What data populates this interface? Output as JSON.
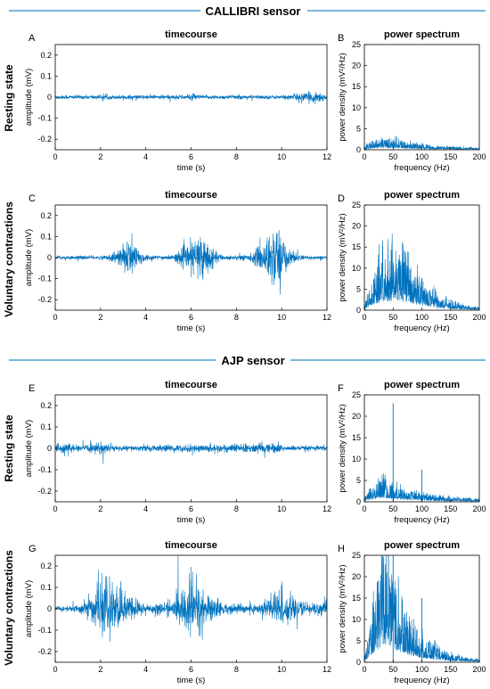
{
  "chart_data": {
    "type": "line",
    "sections": [
      {
        "title": "CALLIBRI sensor"
      },
      {
        "title": "AJP sensor"
      }
    ],
    "rows": [
      {
        "label": "Resting state"
      },
      {
        "label": "Voluntary contractions"
      },
      {
        "label": "Resting state"
      },
      {
        "label": "Voluntary contractions"
      }
    ],
    "panels": [
      {
        "letter": "A",
        "title": "timecourse",
        "kind": "time",
        "xlabel": "time (s)",
        "ylabel": "amplitude (mV)",
        "xlim": [
          0,
          12
        ],
        "ylim": [
          -0.25,
          0.25
        ],
        "xticks": [
          "0",
          "2",
          "4",
          "6",
          "8",
          "10",
          "12"
        ],
        "yticks": [
          "0.2",
          "0.1",
          "0",
          "-0.1",
          "-0.2"
        ],
        "envelope": [
          [
            0,
            0.012
          ],
          [
            5.8,
            0.013
          ],
          [
            6,
            0.022
          ],
          [
            6.5,
            0.012
          ],
          [
            10,
            0.012
          ],
          [
            11.3,
            0.03
          ],
          [
            11.6,
            0.04
          ],
          [
            12,
            0.012
          ]
        ]
      },
      {
        "letter": "B",
        "title": "power spectrum",
        "kind": "psd",
        "xlabel": "frequency (Hz)",
        "ylabel": "power density (mV²/Hz)",
        "xlim": [
          0,
          200
        ],
        "ylim": [
          0,
          25
        ],
        "xticks": [
          "0",
          "50",
          "100",
          "150",
          "200"
        ],
        "yticks": [
          "0",
          "5",
          "10",
          "15",
          "20",
          "25"
        ],
        "envelope": [
          [
            0,
            0.4
          ],
          [
            10,
            1.2
          ],
          [
            30,
            1.9
          ],
          [
            50,
            1.7
          ],
          [
            80,
            1.1
          ],
          [
            120,
            0.6
          ],
          [
            200,
            0.3
          ]
        ]
      },
      {
        "letter": "C",
        "title": "timecourse",
        "kind": "time",
        "xlabel": "time (s)",
        "ylabel": "amplitude (mV)",
        "xlim": [
          0,
          12
        ],
        "ylim": [
          -0.25,
          0.25
        ],
        "xticks": [
          "0",
          "2",
          "4",
          "6",
          "8",
          "10",
          "12"
        ],
        "yticks": [
          "0.2",
          "0.1",
          "0",
          "-0.1",
          "-0.2"
        ],
        "envelope": [
          [
            0,
            0.01
          ],
          [
            2.3,
            0.012
          ],
          [
            3.0,
            0.07
          ],
          [
            3.3,
            0.14
          ],
          [
            3.7,
            0.05
          ],
          [
            4.2,
            0.012
          ],
          [
            5.2,
            0.015
          ],
          [
            6.0,
            0.09
          ],
          [
            6.5,
            0.15
          ],
          [
            7.0,
            0.04
          ],
          [
            7.5,
            0.012
          ],
          [
            8.6,
            0.02
          ],
          [
            9.4,
            0.12
          ],
          [
            9.7,
            0.22
          ],
          [
            10.3,
            0.05
          ],
          [
            11,
            0.01
          ],
          [
            12,
            0.01
          ]
        ]
      },
      {
        "letter": "D",
        "title": "power spectrum",
        "kind": "psd",
        "xlabel": "frequency (Hz)",
        "ylabel": "power density (mV²/Hz)",
        "xlim": [
          0,
          200
        ],
        "ylim": [
          0,
          25
        ],
        "xticks": [
          "0",
          "50",
          "100",
          "150",
          "200"
        ],
        "yticks": [
          "0",
          "5",
          "10",
          "15",
          "20",
          "25"
        ],
        "envelope": [
          [
            0,
            0.5
          ],
          [
            10,
            4
          ],
          [
            30,
            8
          ],
          [
            50,
            9
          ],
          [
            70,
            8
          ],
          [
            100,
            4.5
          ],
          [
            130,
            2
          ],
          [
            170,
            0.8
          ],
          [
            200,
            0.4
          ]
        ]
      },
      {
        "letter": "E",
        "title": "timecourse",
        "kind": "time",
        "xlabel": "time (s)",
        "ylabel": "amplitude (mV)",
        "xlim": [
          0,
          12
        ],
        "ylim": [
          -0.25,
          0.25
        ],
        "xticks": [
          "0",
          "2",
          "4",
          "6",
          "8",
          "10",
          "12"
        ],
        "yticks": [
          "0.2",
          "0.1",
          "0",
          "-0.1",
          "-0.2"
        ],
        "envelope": [
          [
            0,
            0.02
          ],
          [
            0.4,
            0.035
          ],
          [
            1,
            0.015
          ],
          [
            2.2,
            0.035
          ],
          [
            2.7,
            0.015
          ],
          [
            6,
            0.022
          ],
          [
            9.8,
            0.03
          ],
          [
            10.2,
            0.015
          ],
          [
            12,
            0.015
          ]
        ]
      },
      {
        "letter": "F",
        "title": "power spectrum",
        "kind": "psd",
        "xlabel": "frequency (Hz)",
        "ylabel": "power density (mV²/Hz)",
        "xlim": [
          0,
          200
        ],
        "ylim": [
          0,
          25
        ],
        "xticks": [
          "0",
          "50",
          "100",
          "150",
          "200"
        ],
        "yticks": [
          "0",
          "5",
          "10",
          "15",
          "20",
          "25"
        ],
        "envelope": [
          [
            0,
            0.5
          ],
          [
            10,
            2
          ],
          [
            30,
            3.8
          ],
          [
            45,
            2.6
          ],
          [
            70,
            1.8
          ],
          [
            120,
            0.9
          ],
          [
            200,
            0.4
          ]
        ],
        "spikes": [
          [
            50,
            23
          ],
          [
            100,
            7.5
          ]
        ]
      },
      {
        "letter": "G",
        "title": "timecourse",
        "kind": "time",
        "xlabel": "time (s)",
        "ylabel": "amplitude (mV)",
        "xlim": [
          0,
          12
        ],
        "ylim": [
          -0.25,
          0.25
        ],
        "xticks": [
          "0",
          "2",
          "4",
          "6",
          "8",
          "10",
          "12"
        ],
        "yticks": [
          "0.2",
          "0.1",
          "0",
          "-0.1",
          "-0.2"
        ],
        "envelope": [
          [
            0,
            0.015
          ],
          [
            1.0,
            0.02
          ],
          [
            1.8,
            0.1
          ],
          [
            2.3,
            0.18
          ],
          [
            3.0,
            0.1
          ],
          [
            4.0,
            0.03
          ],
          [
            5.2,
            0.04
          ],
          [
            6.0,
            0.2
          ],
          [
            6.7,
            0.09
          ],
          [
            7.5,
            0.03
          ],
          [
            9.0,
            0.03
          ],
          [
            9.9,
            0.13
          ],
          [
            10.6,
            0.05
          ],
          [
            11.2,
            0.04
          ],
          [
            12,
            0.04
          ]
        ]
      },
      {
        "letter": "H",
        "title": "power spectrum",
        "kind": "psd",
        "xlabel": "frequency (Hz)",
        "ylabel": "power density (mV²/Hz)",
        "xlim": [
          0,
          200
        ],
        "ylim": [
          0,
          25
        ],
        "xticks": [
          "0",
          "50",
          "100",
          "150",
          "200"
        ],
        "yticks": [
          "0",
          "5",
          "10",
          "15",
          "20",
          "25"
        ],
        "envelope": [
          [
            0,
            0.5
          ],
          [
            15,
            8
          ],
          [
            30,
            15
          ],
          [
            40,
            17
          ],
          [
            55,
            11
          ],
          [
            80,
            6
          ],
          [
            110,
            3
          ],
          [
            150,
            1.2
          ],
          [
            200,
            0.5
          ]
        ],
        "spikes": [
          [
            50,
            25
          ],
          [
            100,
            15
          ]
        ]
      }
    ],
    "line_color": "#0072BD"
  }
}
